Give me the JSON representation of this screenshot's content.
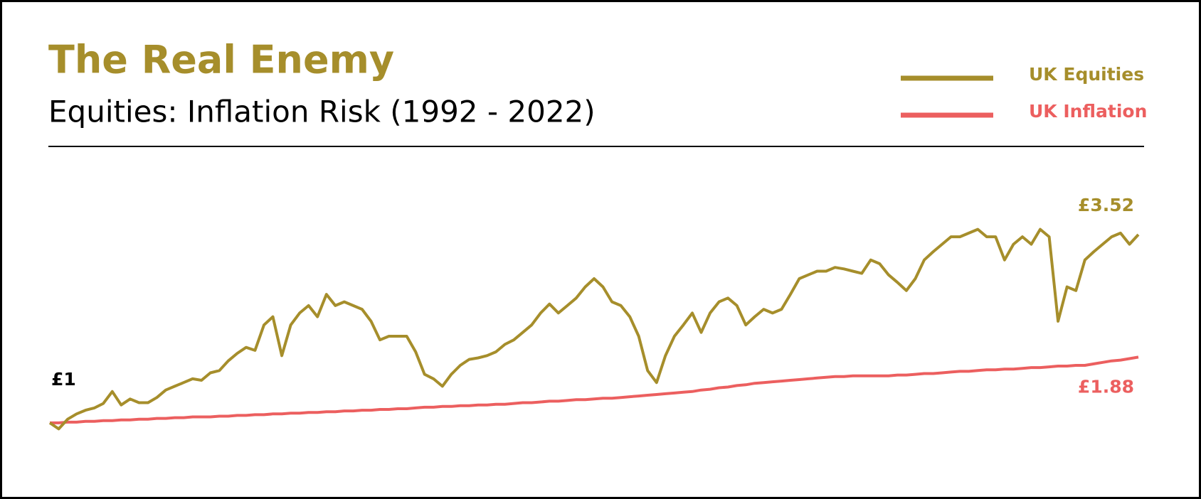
{
  "chart_data": {
    "type": "line",
    "title": "The Real Enemy",
    "subtitle": "Equities: Inflation Risk (1992 - 2022)",
    "legend": "top-right",
    "xlim": [
      1992,
      2022.5
    ],
    "ylim": [
      0.6,
      3.9
    ],
    "x": [
      1992,
      1992.25,
      1992.5,
      1992.75,
      1993,
      1993.25,
      1993.5,
      1993.75,
      1994,
      1994.25,
      1994.5,
      1994.75,
      1995,
      1995.25,
      1995.5,
      1995.75,
      1996,
      1996.25,
      1996.5,
      1996.75,
      1997,
      1997.25,
      1997.5,
      1997.75,
      1998,
      1998.25,
      1998.5,
      1998.75,
      1999,
      1999.25,
      1999.5,
      1999.75,
      2000,
      2000.25,
      2000.5,
      2000.75,
      2001,
      2001.25,
      2001.5,
      2001.75,
      2002,
      2002.25,
      2002.5,
      2002.75,
      2003,
      2003.25,
      2003.5,
      2003.75,
      2004,
      2004.25,
      2004.5,
      2004.75,
      2005,
      2005.25,
      2005.5,
      2005.75,
      2006,
      2006.25,
      2006.5,
      2006.75,
      2007,
      2007.25,
      2007.5,
      2007.75,
      2008,
      2008.25,
      2008.5,
      2008.75,
      2009,
      2009.25,
      2009.5,
      2009.75,
      2010,
      2010.25,
      2010.5,
      2010.75,
      2011,
      2011.25,
      2011.5,
      2011.75,
      2012,
      2012.25,
      2012.5,
      2012.75,
      2013,
      2013.25,
      2013.5,
      2013.75,
      2014,
      2014.25,
      2014.5,
      2014.75,
      2015,
      2015.25,
      2015.5,
      2015.75,
      2016,
      2016.25,
      2016.5,
      2016.75,
      2017,
      2017.25,
      2017.5,
      2017.75,
      2018,
      2018.25,
      2018.5,
      2018.75,
      2019,
      2019.25,
      2019.5,
      2019.75,
      2020,
      2020.25,
      2020.5,
      2020.75,
      2021,
      2021.25,
      2021.5,
      2021.75,
      2022,
      2022.25,
      2022.5
    ],
    "series": [
      {
        "name": "UK Equities",
        "color": "#a68e2b",
        "values": [
          1.0,
          0.92,
          1.05,
          1.12,
          1.17,
          1.2,
          1.26,
          1.42,
          1.24,
          1.32,
          1.27,
          1.27,
          1.34,
          1.44,
          1.49,
          1.54,
          1.59,
          1.57,
          1.67,
          1.7,
          1.83,
          1.93,
          2.01,
          1.97,
          2.31,
          2.42,
          1.9,
          2.31,
          2.47,
          2.57,
          2.42,
          2.72,
          2.57,
          2.62,
          2.57,
          2.52,
          2.36,
          2.11,
          2.16,
          2.16,
          2.16,
          1.95,
          1.65,
          1.59,
          1.49,
          1.65,
          1.77,
          1.85,
          1.87,
          1.9,
          1.95,
          2.05,
          2.11,
          2.21,
          2.31,
          2.47,
          2.59,
          2.47,
          2.57,
          2.67,
          2.82,
          2.93,
          2.82,
          2.62,
          2.57,
          2.42,
          2.16,
          1.7,
          1.54,
          1.9,
          2.16,
          2.31,
          2.47,
          2.21,
          2.47,
          2.62,
          2.67,
          2.57,
          2.31,
          2.42,
          2.52,
          2.47,
          2.52,
          2.72,
          2.93,
          2.98,
          3.03,
          3.03,
          3.08,
          3.06,
          3.03,
          3.0,
          3.18,
          3.13,
          2.98,
          2.88,
          2.77,
          2.93,
          3.18,
          3.29,
          3.39,
          3.49,
          3.49,
          3.54,
          3.59,
          3.49,
          3.49,
          3.18,
          3.39,
          3.49,
          3.39,
          3.59,
          3.49,
          2.36,
          2.82,
          2.77,
          3.18,
          3.29,
          3.39,
          3.49,
          3.54,
          3.39,
          3.52
        ]
      },
      {
        "name": "UK Inflation",
        "color": "#ec5f5f",
        "values": [
          1.0,
          1.0,
          1.01,
          1.01,
          1.02,
          1.02,
          1.03,
          1.03,
          1.04,
          1.04,
          1.05,
          1.05,
          1.06,
          1.06,
          1.07,
          1.07,
          1.08,
          1.08,
          1.08,
          1.09,
          1.09,
          1.1,
          1.1,
          1.11,
          1.11,
          1.12,
          1.12,
          1.13,
          1.13,
          1.14,
          1.14,
          1.15,
          1.15,
          1.16,
          1.16,
          1.17,
          1.17,
          1.18,
          1.18,
          1.19,
          1.19,
          1.2,
          1.21,
          1.21,
          1.22,
          1.22,
          1.23,
          1.23,
          1.24,
          1.24,
          1.25,
          1.25,
          1.26,
          1.27,
          1.27,
          1.28,
          1.29,
          1.29,
          1.3,
          1.31,
          1.31,
          1.32,
          1.33,
          1.33,
          1.34,
          1.35,
          1.36,
          1.37,
          1.38,
          1.39,
          1.4,
          1.41,
          1.42,
          1.44,
          1.45,
          1.47,
          1.48,
          1.5,
          1.51,
          1.53,
          1.54,
          1.55,
          1.56,
          1.57,
          1.58,
          1.59,
          1.6,
          1.61,
          1.62,
          1.62,
          1.63,
          1.63,
          1.63,
          1.63,
          1.63,
          1.64,
          1.64,
          1.65,
          1.66,
          1.66,
          1.67,
          1.68,
          1.69,
          1.69,
          1.7,
          1.71,
          1.71,
          1.72,
          1.72,
          1.73,
          1.74,
          1.74,
          1.75,
          1.76,
          1.76,
          1.77,
          1.77,
          1.79,
          1.81,
          1.83,
          1.84,
          1.86,
          1.88
        ]
      }
    ],
    "annotations": [
      {
        "text": "£1",
        "x": 1992,
        "y": 1,
        "color": "#000000",
        "position": "above"
      },
      {
        "text": "£3.52",
        "x": 2022.5,
        "y": 3.52,
        "color": "#a68e2b",
        "position": "above"
      },
      {
        "text": "£1.88",
        "x": 2022.5,
        "y": 1.88,
        "color": "#ec5f5f",
        "position": "below"
      }
    ]
  }
}
